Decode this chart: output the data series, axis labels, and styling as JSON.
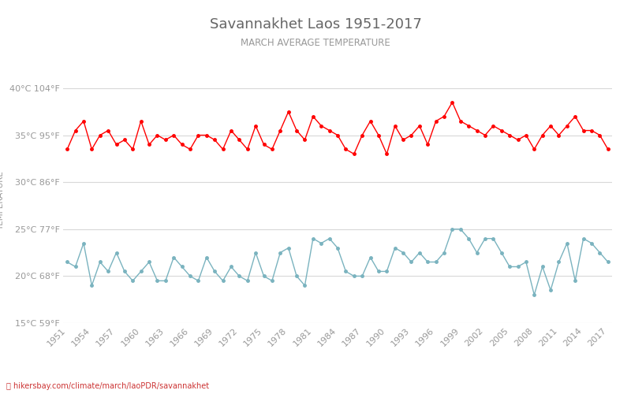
{
  "title": "Savannakhet Laos 1951-2017",
  "subtitle": "MARCH AVERAGE TEMPERATURE",
  "ylabel": "TEMPERATURE",
  "footer": "hikersbay.com/climate/march/laoPDR/savannakhet",
  "ylim": [
    15,
    41
  ],
  "yticks_c": [
    15,
    20,
    25,
    30,
    35,
    40
  ],
  "yticks_f": [
    59,
    68,
    77,
    86,
    95,
    104
  ],
  "years": [
    1951,
    1952,
    1953,
    1954,
    1955,
    1956,
    1957,
    1958,
    1959,
    1960,
    1961,
    1962,
    1963,
    1964,
    1965,
    1966,
    1967,
    1968,
    1969,
    1970,
    1971,
    1972,
    1973,
    1974,
    1975,
    1976,
    1977,
    1978,
    1979,
    1980,
    1981,
    1982,
    1983,
    1984,
    1985,
    1986,
    1987,
    1988,
    1989,
    1990,
    1991,
    1992,
    1993,
    1994,
    1995,
    1996,
    1997,
    1998,
    1999,
    2000,
    2001,
    2002,
    2003,
    2004,
    2005,
    2006,
    2007,
    2008,
    2009,
    2010,
    2011,
    2012,
    2013,
    2014,
    2015,
    2016,
    2017
  ],
  "day_temps": [
    33.5,
    35.5,
    36.5,
    33.5,
    35.0,
    35.5,
    34.0,
    34.5,
    33.5,
    36.5,
    34.0,
    35.0,
    34.5,
    35.0,
    34.0,
    33.5,
    35.0,
    35.0,
    34.5,
    33.5,
    35.5,
    34.5,
    33.5,
    36.0,
    34.0,
    33.5,
    35.5,
    37.5,
    35.5,
    34.5,
    37.0,
    36.0,
    35.5,
    35.0,
    33.5,
    33.0,
    35.0,
    36.5,
    35.0,
    33.0,
    36.0,
    34.5,
    35.0,
    36.0,
    34.0,
    36.5,
    37.0,
    38.5,
    36.5,
    36.0,
    35.5,
    35.0,
    36.0,
    35.5,
    35.0,
    34.5,
    35.0,
    33.5,
    35.0,
    36.0,
    35.0,
    36.0,
    37.0,
    35.5,
    35.5,
    35.0,
    33.5
  ],
  "night_temps": [
    21.5,
    21.0,
    23.5,
    19.0,
    21.5,
    20.5,
    22.5,
    20.5,
    19.5,
    20.5,
    21.5,
    19.5,
    19.5,
    22.0,
    21.0,
    20.0,
    19.5,
    22.0,
    20.5,
    19.5,
    21.0,
    20.0,
    19.5,
    22.5,
    20.0,
    19.5,
    22.5,
    23.0,
    20.0,
    19.0,
    24.0,
    23.5,
    24.0,
    23.0,
    20.5,
    20.0,
    20.0,
    22.0,
    20.5,
    20.5,
    23.0,
    22.5,
    21.5,
    22.5,
    21.5,
    21.5,
    22.5,
    25.0,
    25.0,
    24.0,
    22.5,
    24.0,
    24.0,
    22.5,
    21.0,
    21.0,
    21.5,
    18.0,
    21.0,
    18.5,
    21.5,
    23.5,
    19.5,
    24.0,
    23.5,
    22.5,
    21.5
  ],
  "day_color": "#ff0000",
  "night_color": "#7ab3bf",
  "bg_color": "#ffffff",
  "grid_color": "#d8d8d8",
  "title_color": "#666666",
  "subtitle_color": "#999999",
  "ylabel_color": "#999999",
  "tick_color": "#999999",
  "footer_color": "#cc3333",
  "legend_night_color": "#7ab3bf",
  "legend_day_color": "#ff0000"
}
